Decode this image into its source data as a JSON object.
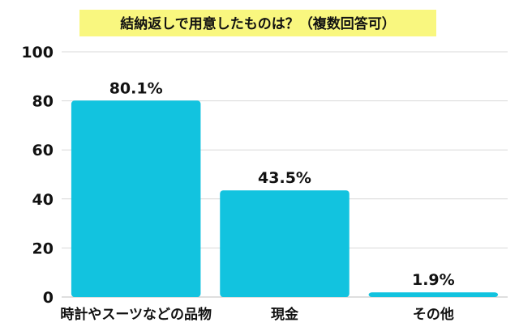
{
  "chart_data": {
    "type": "bar",
    "title": "結納返しで用意したものは？（複数回答可）",
    "categories": [
      "時計やスーツなどの品物",
      "現金",
      "その他"
    ],
    "values": [
      80.1,
      43.5,
      1.9
    ],
    "value_labels": [
      "80.1%",
      "43.5%",
      "1.9%"
    ],
    "y_ticks": [
      0,
      20,
      40,
      60,
      80,
      100
    ],
    "ylim": [
      0,
      100
    ],
    "grid": true,
    "bar_color": "#12c3df",
    "title_background": "#f9f77f"
  }
}
